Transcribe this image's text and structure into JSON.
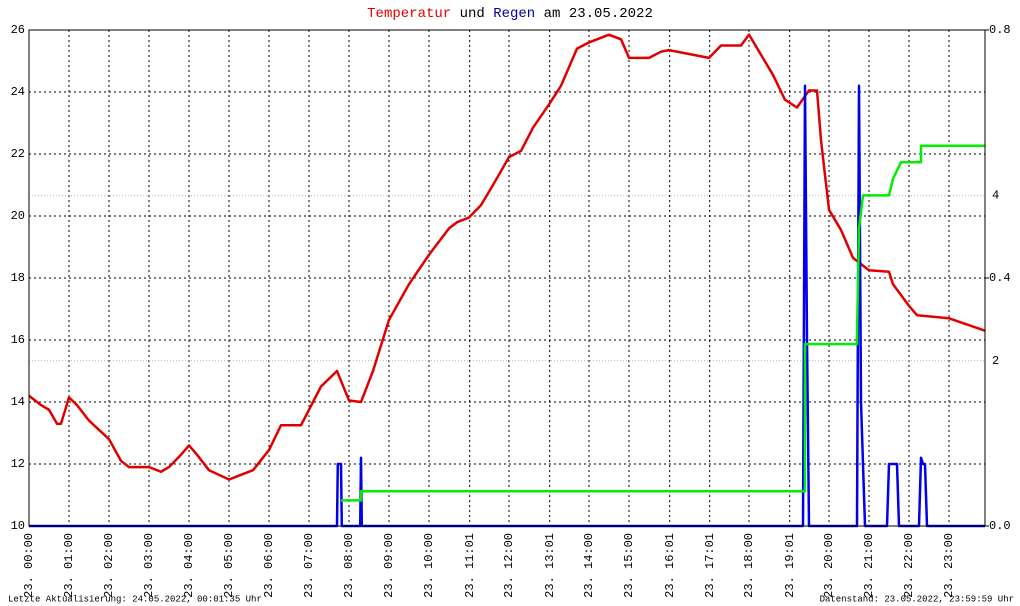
{
  "chart_data": {
    "type": "line",
    "title_parts": [
      {
        "text": "Temperatur",
        "color": "#e00000"
      },
      {
        "text": "und",
        "color": "#000000"
      },
      {
        "text": "Regen",
        "color": "#000099"
      },
      {
        "text": "am 23.05.2022",
        "color": "#000000"
      }
    ],
    "footer_left": "Letzte Aktualisierung: 24.05.2022, 00:01:35 Uhr",
    "footer_right": "Datenstand: 23.05.2022, 23:59:59 Uhr",
    "xlim": [
      0,
      23.9
    ],
    "xticks": [
      {
        "value": 0,
        "label": "23. 00:00"
      },
      {
        "value": 1,
        "label": "23. 01:00"
      },
      {
        "value": 2,
        "label": "23. 02:00"
      },
      {
        "value": 3,
        "label": "23. 03:00"
      },
      {
        "value": 4,
        "label": "23. 04:00"
      },
      {
        "value": 5,
        "label": "23. 05:00"
      },
      {
        "value": 6,
        "label": "23. 06:00"
      },
      {
        "value": 7,
        "label": "23. 07:00"
      },
      {
        "value": 8,
        "label": "23. 08:00"
      },
      {
        "value": 9,
        "label": "23. 09:00"
      },
      {
        "value": 10,
        "label": "23. 10:00"
      },
      {
        "value": 11.017,
        "label": "23. 11:01"
      },
      {
        "value": 12,
        "label": "23. 12:00"
      },
      {
        "value": 13.017,
        "label": "23. 13:01"
      },
      {
        "value": 14,
        "label": "23. 14:00"
      },
      {
        "value": 15,
        "label": "23. 15:00"
      },
      {
        "value": 16.017,
        "label": "23. 16:01"
      },
      {
        "value": 17.017,
        "label": "23. 17:01"
      },
      {
        "value": 18,
        "label": "23. 18:00"
      },
      {
        "value": 19.017,
        "label": "23. 19:01"
      },
      {
        "value": 20,
        "label": "23. 20:00"
      },
      {
        "value": 21,
        "label": "23. 21:00"
      },
      {
        "value": 22,
        "label": "23. 22:00"
      },
      {
        "value": 23,
        "label": "23. 23:00"
      }
    ],
    "ylim": [
      10,
      26
    ],
    "yticks": [
      10,
      12,
      14,
      16,
      18,
      20,
      22,
      24,
      26
    ],
    "y2lim": [
      0,
      0.8
    ],
    "y2ticks": [
      {
        "value": 0,
        "label": "0.0"
      },
      0.4,
      0.8
    ],
    "y3lim": [
      0,
      6
    ],
    "y3ticks": [
      2,
      4
    ],
    "y3color": "#00cc00",
    "grid": true,
    "series": [
      {
        "name": "Temperatur",
        "color": "#e00000",
        "axis": "y",
        "x": [
          0,
          0.3,
          0.5,
          0.7,
          0.8,
          1.0,
          1.2,
          1.5,
          2.0,
          2.3,
          2.5,
          3.0,
          3.3,
          3.5,
          3.8,
          4.0,
          4.2,
          4.5,
          5.0,
          5.3,
          5.6,
          6.0,
          6.3,
          6.8,
          7.0,
          7.3,
          7.7,
          8.0,
          8.3,
          8.6,
          9.0,
          9.5,
          10.0,
          10.5,
          10.7,
          11.0,
          11.3,
          11.6,
          12.0,
          12.3,
          12.6,
          13.0,
          13.3,
          13.7,
          14.0,
          14.5,
          14.8,
          15.0,
          15.5,
          15.8,
          16.0,
          17.0,
          17.3,
          17.8,
          18.0,
          18.3,
          18.6,
          18.9,
          19.2,
          19.5,
          19.7,
          19.8,
          20.0,
          20.3,
          20.6,
          21.0,
          21.5,
          21.6,
          22.0,
          22.2,
          23.0,
          23.9
        ],
        "values": [
          14.2,
          13.9,
          13.75,
          13.3,
          13.3,
          14.15,
          13.9,
          13.4,
          12.8,
          12.1,
          11.9,
          11.9,
          11.75,
          11.9,
          12.3,
          12.6,
          12.3,
          11.8,
          11.5,
          11.65,
          11.8,
          12.45,
          13.25,
          13.25,
          13.75,
          14.5,
          15.0,
          14.05,
          14.0,
          15.0,
          16.65,
          17.8,
          18.75,
          19.6,
          19.8,
          19.95,
          20.35,
          21.0,
          21.9,
          22.1,
          22.85,
          23.6,
          24.2,
          25.4,
          25.6,
          25.85,
          25.7,
          25.1,
          25.1,
          25.3,
          25.35,
          25.1,
          25.5,
          25.5,
          25.85,
          25.2,
          24.55,
          23.75,
          23.5,
          24.05,
          24.05,
          22.45,
          20.2,
          19.55,
          18.65,
          18.25,
          18.2,
          17.8,
          17.1,
          16.8,
          16.7,
          16.3
        ]
      },
      {
        "name": "Regen",
        "color": "#0000ee",
        "axis": "y2",
        "x": [
          0,
          7.7,
          7.72,
          7.75,
          7.8,
          7.82,
          8.28,
          8.3,
          8.32,
          19.35,
          19.4,
          19.45,
          19.5,
          20.7,
          20.75,
          20.8,
          20.85,
          20.9,
          21.45,
          21.5,
          21.6,
          21.7,
          21.75,
          22.25,
          22.3,
          22.35,
          22.4,
          22.45,
          23.9
        ],
        "values": [
          0,
          0,
          0.1,
          0.1,
          0.1,
          0,
          0,
          0.11,
          0,
          0,
          0.71,
          0.3,
          0,
          0,
          0.71,
          0.2,
          0.1,
          0,
          0,
          0.1,
          0.1,
          0.1,
          0,
          0,
          0.11,
          0.1,
          0.1,
          0,
          0
        ]
      },
      {
        "color": "#00ee00",
        "axis": "y3",
        "x": [
          7.8,
          8.3,
          8.3,
          19.4,
          19.4,
          20.7,
          20.7,
          20.75,
          20.85,
          21.5,
          21.6,
          21.8,
          22.0,
          22.3,
          22.3,
          23.9
        ],
        "values": [
          0.31,
          0.31,
          0.42,
          0.42,
          2.2,
          2.2,
          2.3,
          3.6,
          4.0,
          4.0,
          4.2,
          4.4,
          4.4,
          4.4,
          4.6,
          4.6
        ]
      }
    ]
  }
}
